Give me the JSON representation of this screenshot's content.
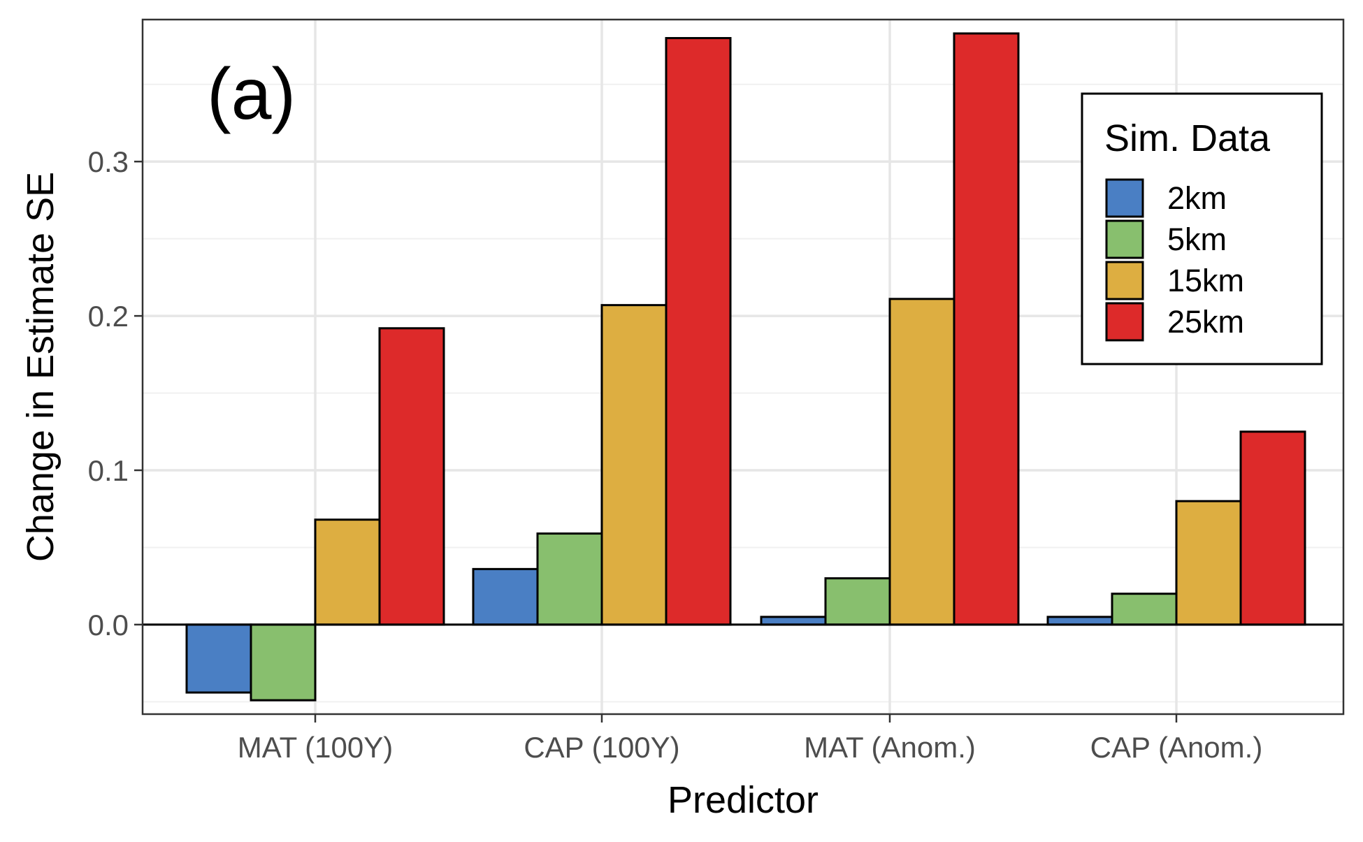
{
  "chart_data": {
    "type": "bar",
    "panel_label": "(a)",
    "xlabel": "Predictor",
    "ylabel": "Change in Estimate SE",
    "categories": [
      "MAT (100Y)",
      "CAP (100Y)",
      "MAT (Anom.)",
      "CAP (Anom.)"
    ],
    "ylim": [
      -0.058,
      0.392
    ],
    "yticks": [
      0.0,
      0.1,
      0.2,
      0.3
    ],
    "ytick_labels": [
      "0.0",
      "0.1",
      "0.2",
      "0.3"
    ],
    "grid": true,
    "legend": {
      "title": "Sim. Data",
      "placement": "top-right"
    },
    "series": [
      {
        "name": "2km",
        "color": "#4a7fc4",
        "values": [
          -0.044,
          0.036,
          0.005,
          0.005
        ]
      },
      {
        "name": "5km",
        "color": "#88bf6e",
        "values": [
          -0.049,
          0.059,
          0.03,
          0.02
        ]
      },
      {
        "name": "15km",
        "color": "#ddae41",
        "values": [
          0.068,
          0.207,
          0.211,
          0.08
        ]
      },
      {
        "name": "25km",
        "color": "#dd2a2a",
        "values": [
          0.192,
          0.38,
          0.383,
          0.125
        ]
      }
    ]
  }
}
